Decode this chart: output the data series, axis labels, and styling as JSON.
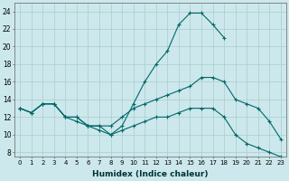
{
  "xlabel": "Humidex (Indice chaleur)",
  "bg_color": "#cce8ec",
  "grid_color": "#aacccc",
  "line_color": "#006868",
  "xlim": [
    -0.5,
    23.5
  ],
  "ylim": [
    7.5,
    25
  ],
  "xticks": [
    0,
    1,
    2,
    3,
    4,
    5,
    6,
    7,
    8,
    9,
    10,
    11,
    12,
    13,
    14,
    15,
    16,
    17,
    18,
    19,
    20,
    21,
    22,
    23
  ],
  "yticks": [
    8,
    10,
    12,
    14,
    16,
    18,
    20,
    22,
    24
  ],
  "line1_x": [
    0,
    1,
    2,
    3,
    4,
    5,
    6,
    7,
    8,
    9,
    10,
    11,
    12,
    13,
    14,
    15,
    16,
    17,
    18
  ],
  "line1_y": [
    13,
    12.5,
    13.5,
    13.5,
    12,
    12,
    11,
    11,
    10,
    11,
    13.5,
    16,
    18,
    19.5,
    22.5,
    23.8,
    23.8,
    22.5,
    21
  ],
  "line2_x": [
    0,
    1,
    2,
    3,
    4,
    5,
    6,
    7,
    8,
    9,
    10,
    11,
    12,
    13,
    14,
    15,
    16,
    17,
    18,
    19,
    20,
    21,
    22,
    23
  ],
  "line2_y": [
    13,
    12.5,
    13.5,
    13.5,
    12,
    12,
    11,
    11,
    11,
    12,
    13,
    13.5,
    14,
    14.5,
    15,
    15.5,
    16.5,
    16.5,
    16,
    14,
    13.5,
    13,
    11.5,
    9.5
  ],
  "line3_x": [
    0,
    1,
    2,
    3,
    4,
    5,
    6,
    7,
    8,
    9,
    10,
    11,
    12,
    13,
    14,
    15,
    16,
    17,
    18,
    19,
    20,
    21,
    22,
    23
  ],
  "line3_y": [
    13,
    12.5,
    13.5,
    13.5,
    12,
    11.5,
    11,
    10.5,
    10,
    10.5,
    11,
    11.5,
    12,
    12,
    12.5,
    13,
    13,
    13,
    12,
    10,
    9,
    8.5,
    8,
    7.5
  ]
}
